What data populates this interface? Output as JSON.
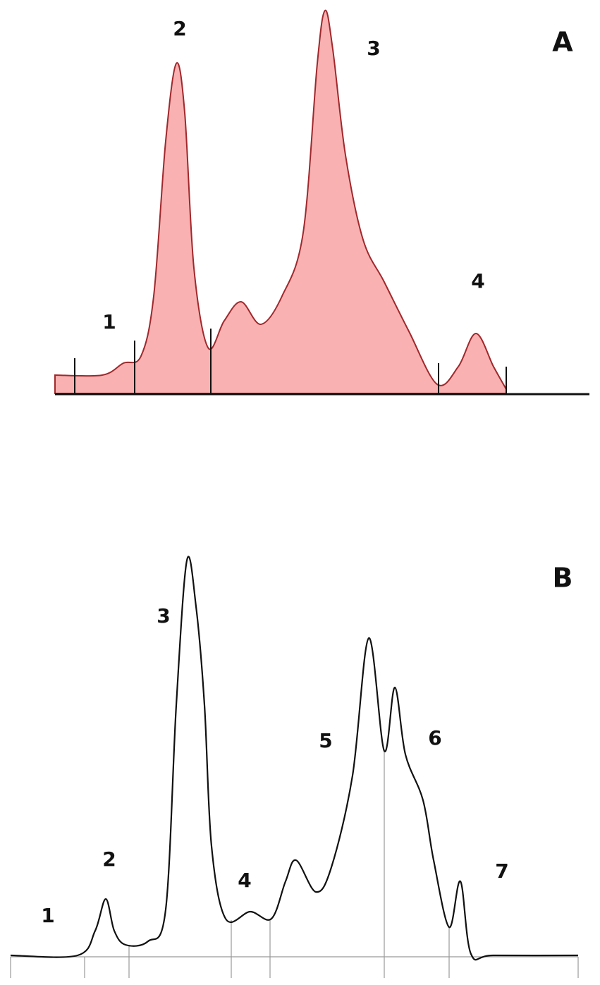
{
  "panels": [
    {
      "label": "A",
      "peaks": [
        "1",
        "2",
        "3",
        "4"
      ]
    },
    {
      "label": "B",
      "peaks": [
        "1",
        "2",
        "3",
        "4",
        "5",
        "6",
        "7"
      ]
    }
  ]
}
